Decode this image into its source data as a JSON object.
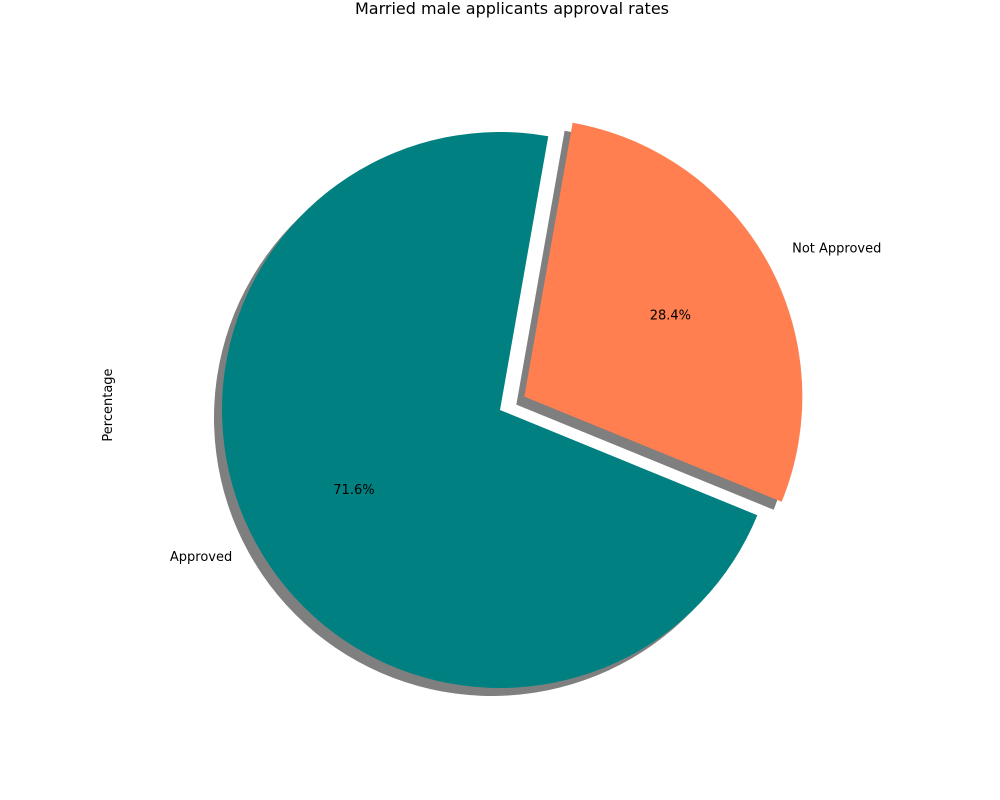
{
  "chart_data": {
    "type": "pie",
    "title": "Married male applicants approval rates",
    "ylabel": "Percentage",
    "slices": [
      {
        "label": "Approved",
        "value": 71.6,
        "pct_label": "71.6%",
        "color": "#008080",
        "explode": false
      },
      {
        "label": "Not Approved",
        "value": 28.4,
        "pct_label": "28.4%",
        "color": "#ff7f50",
        "explode": true
      }
    ],
    "shadow": true,
    "legend": "none"
  }
}
